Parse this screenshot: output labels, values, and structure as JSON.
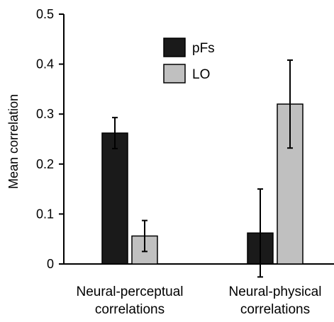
{
  "chart_data": {
    "type": "bar",
    "title": "",
    "xlabel": "",
    "ylabel": "Mean correlation",
    "ylim": [
      0,
      0.5
    ],
    "yticks": [
      {
        "value": 0,
        "label": "0"
      },
      {
        "value": 0.1,
        "label": "0.1"
      },
      {
        "value": 0.2,
        "label": "0.2"
      },
      {
        "value": 0.3,
        "label": "0.3"
      },
      {
        "value": 0.4,
        "label": "0.4"
      },
      {
        "value": 0.5,
        "label": "0.5"
      }
    ],
    "categories": [
      {
        "line1": "Neural-perceptual",
        "line2": "correlations"
      },
      {
        "line1": "Neural-physical",
        "line2": "correlations"
      }
    ],
    "series": [
      {
        "name": "pFs",
        "color": "#1a1a1a",
        "values": [
          0.262,
          0.062
        ],
        "errors": [
          0.031,
          0.088
        ]
      },
      {
        "name": "LO",
        "color": "#c0c0c0",
        "values": [
          0.056,
          0.32
        ],
        "errors": [
          0.031,
          0.088
        ]
      }
    ],
    "grid": false,
    "legend_position": "top-center"
  }
}
